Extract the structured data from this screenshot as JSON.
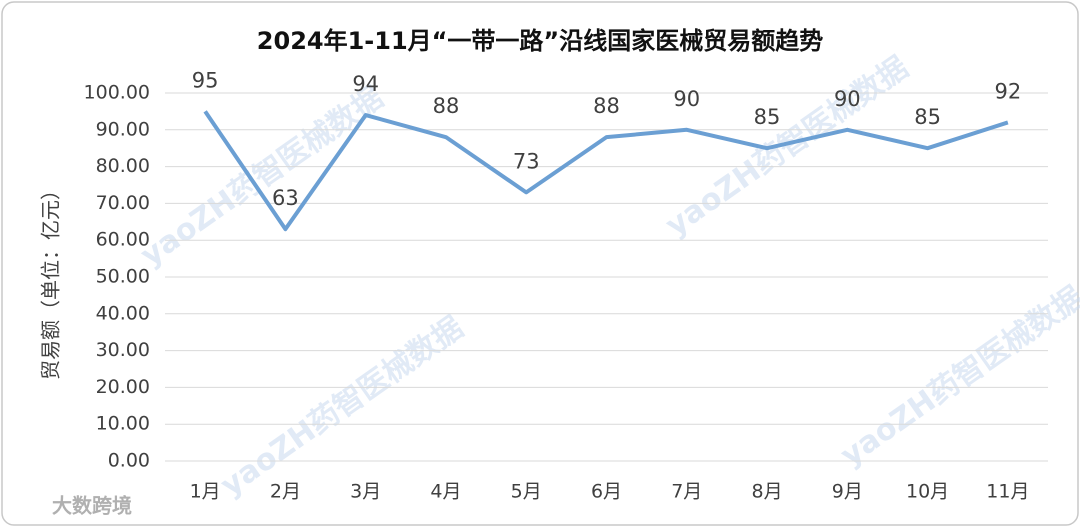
{
  "chart_data": {
    "type": "line",
    "title": "2024年1-11月“一带一路”沿线国家医械贸易额趋势",
    "y_label": "贸易额（单位：亿元）",
    "categories": [
      "1月",
      "2月",
      "3月",
      "4月",
      "5月",
      "6月",
      "7月",
      "8月",
      "9月",
      "10月",
      "11月"
    ],
    "series": [
      {
        "name": "贸易额",
        "color": "#6b9fd3",
        "values": [
          95,
          63,
          94,
          88,
          73,
          88,
          90,
          85,
          90,
          85,
          92
        ]
      }
    ],
    "ylim": [
      0,
      100
    ],
    "yticks": [
      {
        "value": 0,
        "label": "0.00"
      },
      {
        "value": 10,
        "label": "10.00"
      },
      {
        "value": 20,
        "label": "20.00"
      },
      {
        "value": 30,
        "label": "30.00"
      },
      {
        "value": 40,
        "label": "40.00"
      },
      {
        "value": 50,
        "label": "50.00"
      },
      {
        "value": 60,
        "label": "60.00"
      },
      {
        "value": 70,
        "label": "70.00"
      },
      {
        "value": 80,
        "label": "80.00"
      },
      {
        "value": 90,
        "label": "90.00"
      },
      {
        "value": 100,
        "label": "100.00"
      }
    ],
    "grid": true,
    "watermark": "yaoZH药智医械数据",
    "logo": "大数跨境"
  }
}
